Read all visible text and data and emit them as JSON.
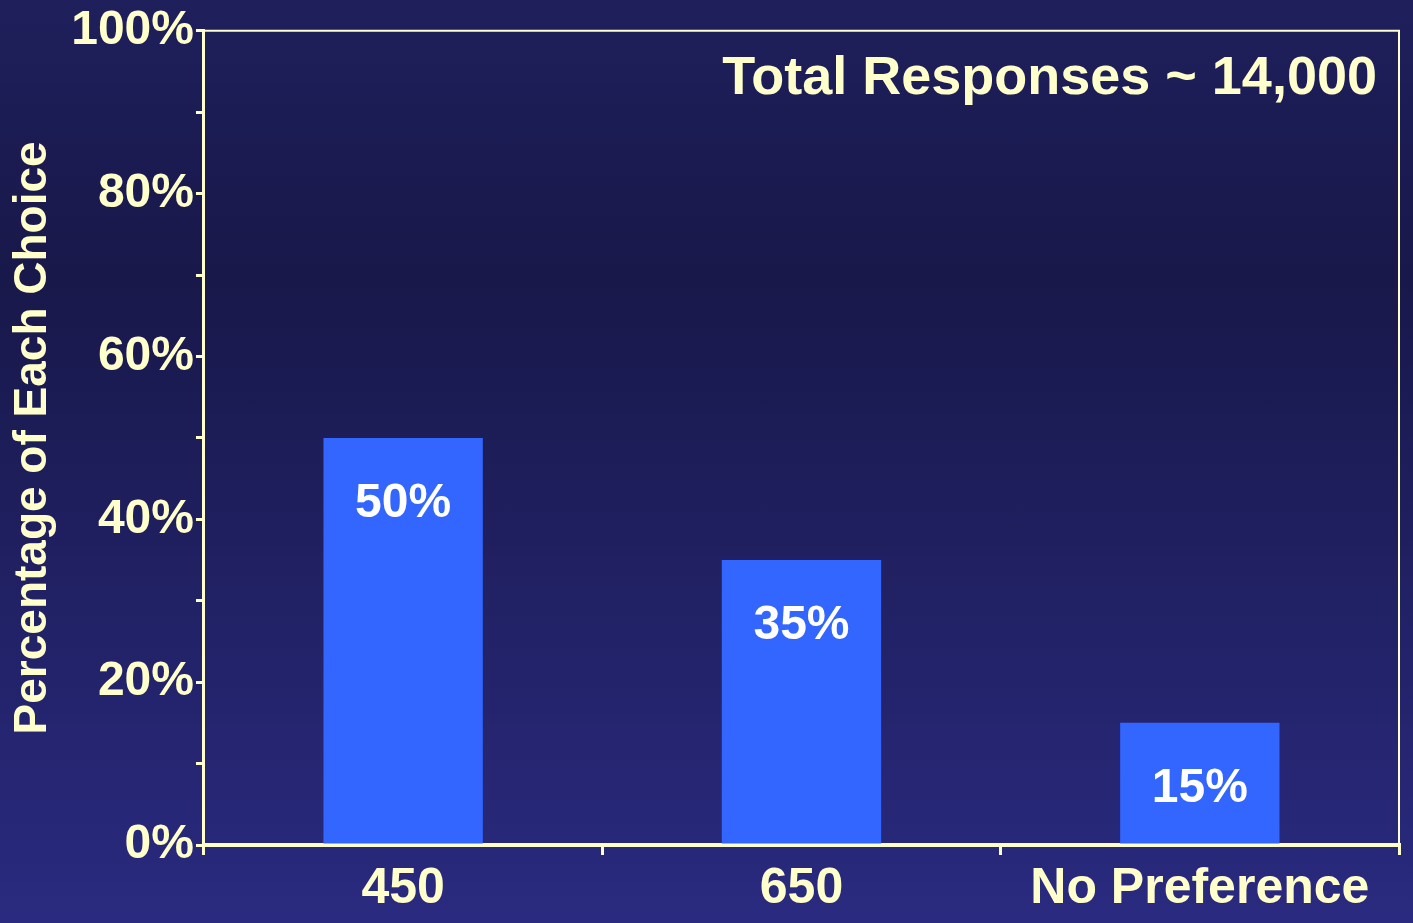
{
  "chart_data": {
    "type": "bar",
    "ylabel": "Percentage of Each Choice",
    "categories": [
      "450",
      "650",
      "No Preference"
    ],
    "values": [
      50,
      35,
      15
    ],
    "color": "#3366ff",
    "value_labels": [
      "50%",
      "35%",
      "15%"
    ],
    "ylim": [
      0,
      100
    ],
    "yticks": [
      {
        "value": 0,
        "label": "0%"
      },
      {
        "value": 10,
        "label": null
      },
      {
        "value": 20,
        "label": "20%"
      },
      {
        "value": 30,
        "label": null
      },
      {
        "value": 40,
        "label": "40%"
      },
      {
        "value": 50,
        "label": null
      },
      {
        "value": 60,
        "label": "60%"
      },
      {
        "value": 70,
        "label": null
      },
      {
        "value": 80,
        "label": "80%"
      },
      {
        "value": 90,
        "label": null
      },
      {
        "value": 100,
        "label": "100%"
      }
    ],
    "annotations": [
      "Total Responses ~ 14,000"
    ],
    "grid": false,
    "legend": false
  }
}
